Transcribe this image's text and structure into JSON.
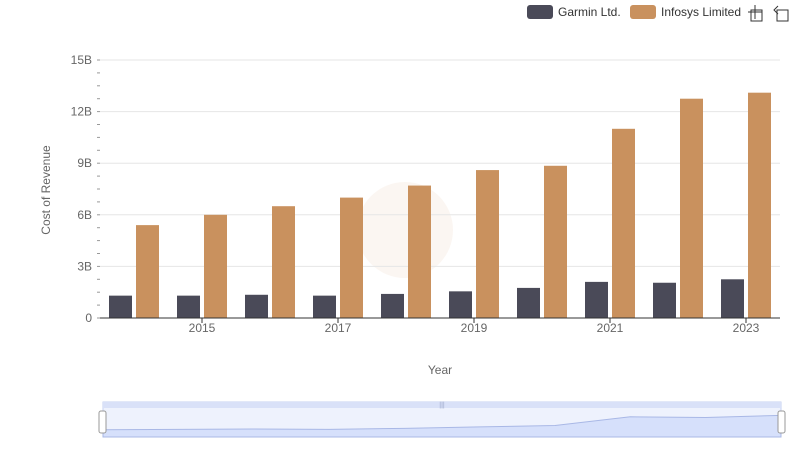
{
  "chart_data": {
    "type": "bar",
    "categories": [
      "2014",
      "2015",
      "2016",
      "2017",
      "2018",
      "2019",
      "2020",
      "2021",
      "2022",
      "2023"
    ],
    "series": [
      {
        "name": "Garmin Ltd.",
        "color": "#4a4a58",
        "values": [
          1.3,
          1.3,
          1.35,
          1.3,
          1.4,
          1.55,
          1.75,
          2.1,
          2.05,
          2.25
        ]
      },
      {
        "name": "Infosys Limited",
        "color": "#c9915e",
        "values": [
          5.4,
          6.0,
          6.5,
          7.0,
          7.7,
          8.6,
          8.85,
          11.0,
          12.75,
          13.1
        ]
      }
    ],
    "x_tick_labels": [
      "2015",
      "2017",
      "2019",
      "2021",
      "2023"
    ],
    "y_ticks": [
      0,
      3,
      6,
      9,
      12,
      15
    ],
    "y_tick_labels": [
      "0",
      "3B",
      "6B",
      "9B",
      "12B",
      "15B"
    ],
    "ylim": [
      0,
      15
    ],
    "xlabel": "Year",
    "ylabel": "Cost of Revenue",
    "legend_position": "top-right",
    "grid": "horizontal",
    "navigator_trend": [
      1.0,
      1.05,
      1.1,
      1.05,
      1.2,
      1.4,
      1.6,
      2.8,
      2.7,
      3.0
    ]
  },
  "toolbar": {
    "zoom_icon": "zoom-icon",
    "reset_icon": "reset-zoom-icon"
  },
  "colors": {
    "grid": "#e6e6e6",
    "axis_text": "#666666",
    "navigator_fill": "#dfe6fb",
    "navigator_line": "#a9b8e6"
  }
}
